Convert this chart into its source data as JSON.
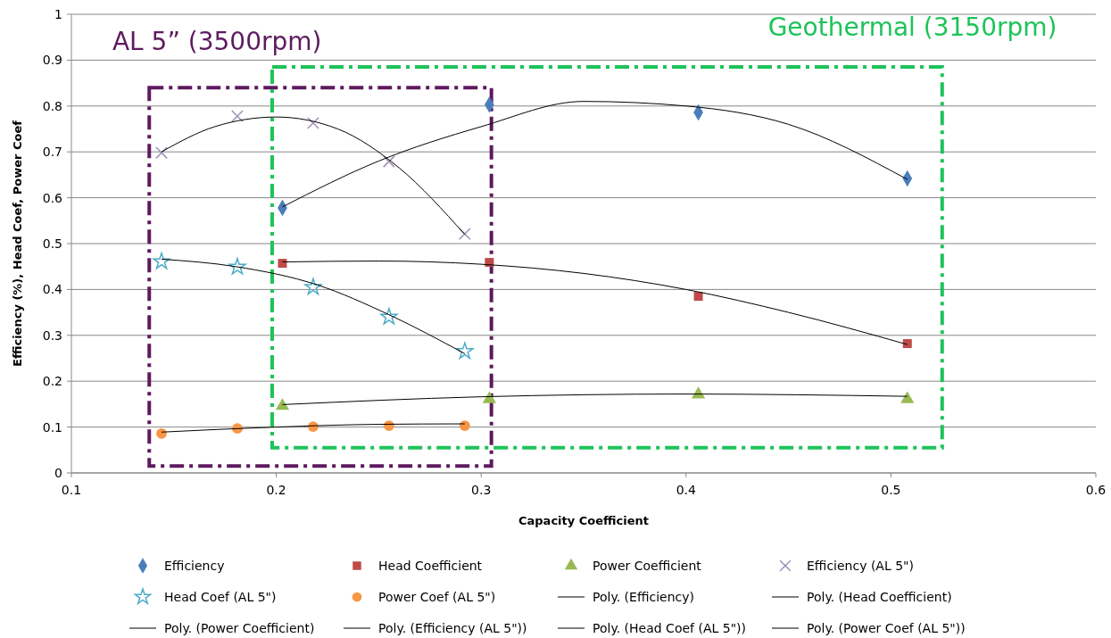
{
  "chart_data": {
    "type": "scatter",
    "xlabel": "Capacity Coefficient",
    "ylabel": "Efficiency (%), Head Coef, Power Coef",
    "xlim": [
      0.1,
      0.6
    ],
    "xticks": [
      0.1,
      0.2,
      0.3,
      0.4,
      0.5,
      0.6
    ],
    "ylim": [
      0,
      1
    ],
    "yticks": [
      0,
      0.1,
      0.2,
      0.3,
      0.4,
      0.5,
      0.6,
      0.7,
      0.8,
      0.9,
      1
    ],
    "grid": "y",
    "legend": "bottom",
    "annotations": [
      "AL 5” (3500rpm)",
      "Geothermal (3150rpm)"
    ],
    "series": [
      {
        "name": "Efficiency",
        "color": "#4a7ebb",
        "marker": "diamond",
        "x": [
          0.203,
          0.304,
          0.406,
          0.508
        ],
        "values": [
          0.578,
          0.803,
          0.786,
          0.642
        ]
      },
      {
        "name": "Head Coefficient",
        "color": "#be4b48",
        "marker": "square",
        "x": [
          0.203,
          0.304,
          0.406,
          0.508
        ],
        "values": [
          0.457,
          0.459,
          0.385,
          0.282
        ]
      },
      {
        "name": "Power Coefficient",
        "color": "#98b954",
        "marker": "triangle",
        "x": [
          0.203,
          0.304,
          0.406,
          0.508
        ],
        "values": [
          0.146,
          0.161,
          0.171,
          0.161
        ]
      },
      {
        "name": "Efficiency (AL 5\")",
        "color": "#9e8fb8",
        "marker": "cross",
        "x": [
          0.144,
          0.181,
          0.218,
          0.255,
          0.292
        ],
        "values": [
          0.698,
          0.778,
          0.763,
          0.679,
          0.521
        ]
      },
      {
        "name": "Head Coef (AL 5\")",
        "color": "#4bacc6",
        "marker": "star",
        "x": [
          0.144,
          0.181,
          0.218,
          0.255,
          0.292
        ],
        "values": [
          0.461,
          0.449,
          0.405,
          0.34,
          0.265
        ]
      },
      {
        "name": "Power Coef (AL 5\")",
        "color": "#f79646",
        "marker": "circle",
        "x": [
          0.144,
          0.181,
          0.218,
          0.255,
          0.292
        ],
        "values": [
          0.086,
          0.097,
          0.101,
          0.103,
          0.103
        ]
      },
      {
        "name": "Poly. (Efficiency)",
        "type": "line",
        "color": "#000000",
        "marker": "none",
        "line_style": "solid",
        "x": [
          0.203,
          0.25,
          0.3,
          0.35,
          0.4,
          0.45,
          0.508
        ],
        "values": [
          0.58,
          0.68,
          0.755,
          0.81,
          0.8,
          0.76,
          0.64
        ]
      },
      {
        "name": "Poly. (Head Coefficient)",
        "type": "line",
        "color": "#000000",
        "marker": "none",
        "line_style": "solid",
        "x": [
          0.203,
          0.25,
          0.3,
          0.35,
          0.4,
          0.45,
          0.508
        ],
        "values": [
          0.46,
          0.462,
          0.455,
          0.435,
          0.4,
          0.35,
          0.28
        ]
      },
      {
        "name": "Poly. (Power Coefficient)",
        "type": "line",
        "color": "#000000",
        "marker": "none",
        "line_style": "solid",
        "x": [
          0.203,
          0.3,
          0.4,
          0.508
        ],
        "values": [
          0.149,
          0.166,
          0.172,
          0.167
        ]
      },
      {
        "name": "Poly. (Efficiency (AL 5\"))",
        "type": "line",
        "color": "#000000",
        "marker": "none",
        "line_style": "solid",
        "x": [
          0.144,
          0.17,
          0.2,
          0.23,
          0.26,
          0.292
        ],
        "values": [
          0.7,
          0.755,
          0.776,
          0.75,
          0.665,
          0.52
        ]
      },
      {
        "name": "Poly. (Head Coef (AL 5\"))",
        "type": "line",
        "color": "#000000",
        "marker": "none",
        "line_style": "solid",
        "x": [
          0.144,
          0.18,
          0.22,
          0.255,
          0.292
        ],
        "values": [
          0.466,
          0.45,
          0.41,
          0.345,
          0.26
        ]
      },
      {
        "name": "Poly. (Power Coef (AL 5\"))",
        "type": "line",
        "color": "#000000",
        "marker": "none",
        "line_style": "solid",
        "x": [
          0.144,
          0.2,
          0.25,
          0.292
        ],
        "values": [
          0.089,
          0.1,
          0.106,
          0.107
        ]
      }
    ]
  }
}
